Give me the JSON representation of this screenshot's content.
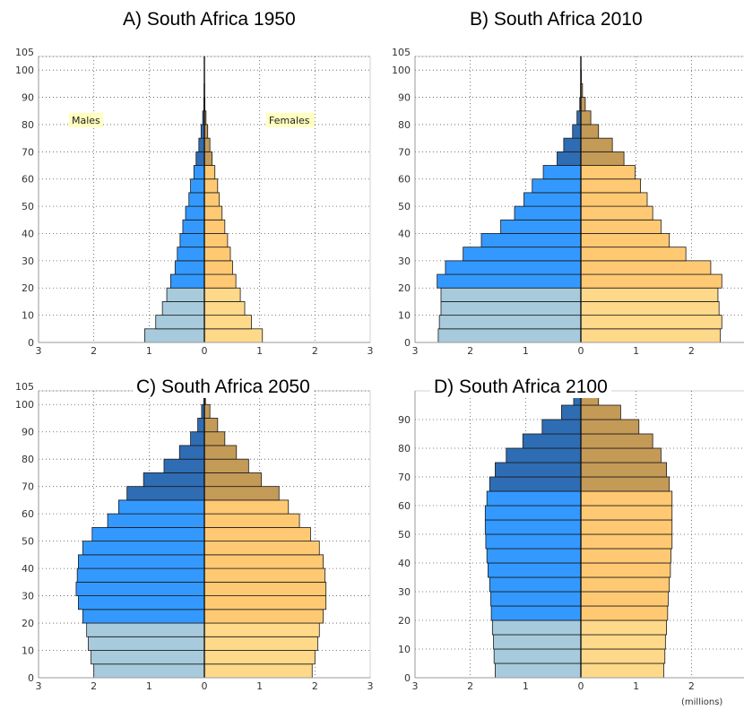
{
  "units_label": "(millions)",
  "colors": {
    "male_young": "#a7cbdc",
    "male_working": "#3399ff",
    "male_old": "#2e6db4",
    "female_young": "#ffd98a",
    "female_working": "#ffc973",
    "female_old": "#c49a57",
    "legend_bg": "#ffffc0"
  },
  "chart_data": [
    {
      "type": "bar",
      "title": "A)   South Africa 1950",
      "xlim": [
        -3,
        3
      ],
      "ylim": [
        0,
        105
      ],
      "x_tick_labels": [
        "3",
        "2",
        "1",
        "0",
        "1",
        "2",
        "3"
      ],
      "y_tick_labels": [
        "0",
        "10",
        "20",
        "30",
        "40",
        "50",
        "60",
        "70",
        "80",
        "90",
        "100",
        "105"
      ],
      "legend": {
        "males": "Males",
        "females": "Females"
      },
      "age_groups": [
        "0-4",
        "5-9",
        "10-14",
        "15-19",
        "20-24",
        "25-29",
        "30-34",
        "35-39",
        "40-44",
        "45-49",
        "50-54",
        "55-59",
        "60-64",
        "65-69",
        "70-74",
        "75-79",
        "80-84",
        "85-89",
        "90-94",
        "95-99",
        "100+"
      ],
      "series": [
        {
          "name": "Males",
          "values": [
            1.08,
            0.88,
            0.76,
            0.68,
            0.61,
            0.53,
            0.49,
            0.44,
            0.39,
            0.34,
            0.28,
            0.25,
            0.19,
            0.15,
            0.1,
            0.06,
            0.03,
            0.01,
            0.005,
            0.002,
            0.001
          ]
        },
        {
          "name": "Females",
          "values": [
            1.05,
            0.85,
            0.73,
            0.65,
            0.57,
            0.51,
            0.47,
            0.42,
            0.37,
            0.32,
            0.27,
            0.24,
            0.19,
            0.14,
            0.1,
            0.06,
            0.03,
            0.01,
            0.005,
            0.002,
            0.001
          ]
        }
      ]
    },
    {
      "type": "bar",
      "title": "B)   South Africa 2010",
      "xlim": [
        -3,
        3
      ],
      "ylim": [
        0,
        105
      ],
      "x_tick_labels": [
        "3",
        "2",
        "1",
        "0",
        "1",
        "2",
        "3"
      ],
      "y_tick_labels": [
        "0",
        "10",
        "20",
        "30",
        "40",
        "50",
        "60",
        "70",
        "80",
        "90",
        "100",
        "105"
      ],
      "age_groups": [
        "0-4",
        "5-9",
        "10-14",
        "15-19",
        "20-24",
        "25-29",
        "30-34",
        "35-39",
        "40-44",
        "45-49",
        "50-54",
        "55-59",
        "60-64",
        "65-69",
        "70-74",
        "75-79",
        "80-84",
        "85-89",
        "90-94",
        "95-99",
        "100+"
      ],
      "series": [
        {
          "name": "Males",
          "values": [
            2.58,
            2.56,
            2.53,
            2.53,
            2.6,
            2.45,
            2.13,
            1.8,
            1.45,
            1.2,
            1.03,
            0.88,
            0.68,
            0.43,
            0.31,
            0.15,
            0.07,
            0.02,
            0.005,
            0.002,
            0.001
          ]
        },
        {
          "name": "Females",
          "values": [
            2.52,
            2.55,
            2.5,
            2.48,
            2.55,
            2.35,
            1.9,
            1.6,
            1.45,
            1.3,
            1.2,
            1.08,
            0.98,
            0.78,
            0.57,
            0.32,
            0.18,
            0.08,
            0.03,
            0.01,
            0.003
          ]
        }
      ]
    },
    {
      "type": "bar",
      "title": "C)   South Africa 2050",
      "xlim": [
        -3,
        3
      ],
      "ylim": [
        0,
        105
      ],
      "x_tick_labels": [
        "3",
        "2",
        "1",
        "0",
        "1",
        "2",
        "3"
      ],
      "y_tick_labels": [
        "0",
        "10",
        "20",
        "30",
        "40",
        "50",
        "60",
        "70",
        "80",
        "90",
        "100",
        "105"
      ],
      "age_groups": [
        "0-4",
        "5-9",
        "10-14",
        "15-19",
        "20-24",
        "25-29",
        "30-34",
        "35-39",
        "40-44",
        "45-49",
        "50-54",
        "55-59",
        "60-64",
        "65-69",
        "70-74",
        "75-79",
        "80-84",
        "85-89",
        "90-94",
        "95-99",
        "100+"
      ],
      "series": [
        {
          "name": "Males",
          "values": [
            2.0,
            2.05,
            2.1,
            2.13,
            2.2,
            2.28,
            2.32,
            2.3,
            2.28,
            2.2,
            2.03,
            1.75,
            1.55,
            1.4,
            1.1,
            0.73,
            0.45,
            0.25,
            0.12,
            0.05,
            0.01
          ]
        },
        {
          "name": "Females",
          "values": [
            1.95,
            2.0,
            2.05,
            2.08,
            2.15,
            2.2,
            2.2,
            2.18,
            2.15,
            2.08,
            1.92,
            1.72,
            1.52,
            1.35,
            1.03,
            0.8,
            0.58,
            0.37,
            0.24,
            0.1,
            0.02
          ]
        }
      ]
    },
    {
      "type": "bar",
      "title": "D)   South Africa 2100",
      "xlim": [
        -3,
        3
      ],
      "ylim": [
        0,
        100
      ],
      "x_tick_labels": [
        "3",
        "2",
        "1",
        "0",
        "1",
        "2",
        "3"
      ],
      "y_tick_labels": [
        "0",
        "10",
        "20",
        "30",
        "40",
        "50",
        "60",
        "70",
        "80",
        "90"
      ],
      "age_groups": [
        "0-4",
        "5-9",
        "10-14",
        "15-19",
        "20-24",
        "25-29",
        "30-34",
        "35-39",
        "40-44",
        "45-49",
        "50-54",
        "55-59",
        "60-64",
        "65-69",
        "70-74",
        "75-79",
        "80-84",
        "85-89",
        "90-94",
        "95-99"
      ],
      "series": [
        {
          "name": "Males",
          "values": [
            1.55,
            1.57,
            1.58,
            1.6,
            1.62,
            1.63,
            1.65,
            1.68,
            1.7,
            1.72,
            1.73,
            1.73,
            1.7,
            1.65,
            1.55,
            1.35,
            1.05,
            0.7,
            0.35,
            0.13
          ]
        },
        {
          "name": "Females",
          "values": [
            1.5,
            1.52,
            1.53,
            1.55,
            1.57,
            1.58,
            1.6,
            1.62,
            1.63,
            1.65,
            1.65,
            1.65,
            1.65,
            1.6,
            1.55,
            1.45,
            1.3,
            1.05,
            0.72,
            0.32
          ]
        }
      ]
    }
  ]
}
